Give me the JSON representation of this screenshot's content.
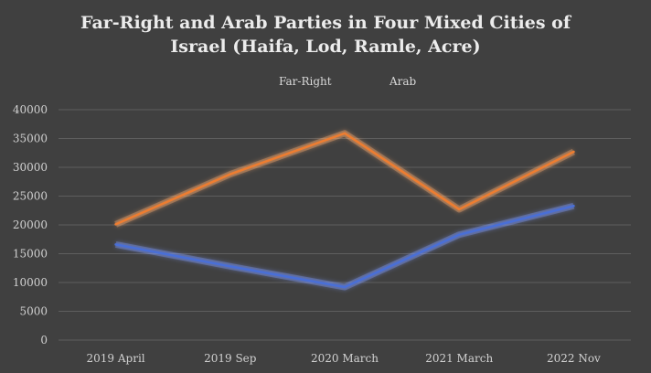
{
  "chart_data": {
    "type": "line",
    "title_lines": [
      "Far-Right and Arab Parties in Four Mixed Cities of",
      "Israel (Haifa, Lod, Ramle, Acre)"
    ],
    "xlabel": "",
    "ylabel": "",
    "categories": [
      "2019 April",
      "2019 Sep",
      "2020 March",
      "2021 March",
      "2022 Nov"
    ],
    "ylim": [
      0,
      40000
    ],
    "yticks": [
      0,
      5000,
      10000,
      15000,
      20000,
      25000,
      30000,
      35000,
      40000
    ],
    "grid": true,
    "legend_position": "top",
    "series": [
      {
        "name": "Far-Right",
        "color": "#4a6fd6",
        "glow": "#7f9cff",
        "values": [
          16600,
          12800,
          9200,
          18300,
          23300
        ]
      },
      {
        "name": "Arab",
        "color": "#ed7d31",
        "glow": "#ffad6e",
        "values": [
          20100,
          28800,
          35900,
          22700,
          32700
        ]
      }
    ]
  }
}
